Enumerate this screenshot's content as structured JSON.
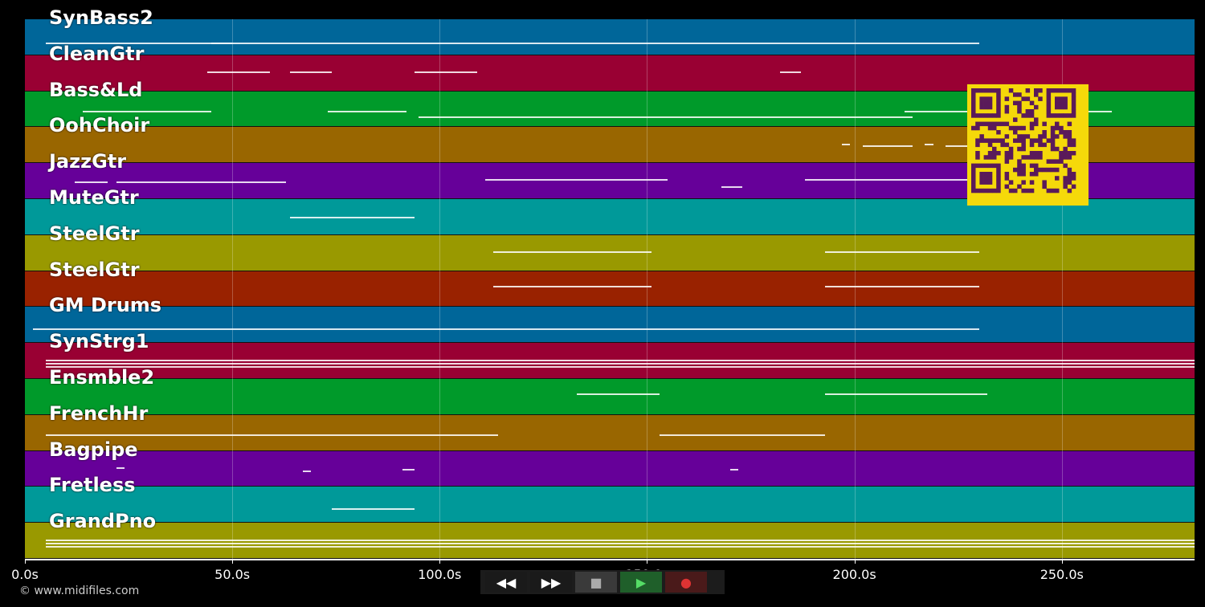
{
  "tracks": [
    {
      "name": "SynBass2",
      "color": "#006699"
    },
    {
      "name": "CleanGtr",
      "color": "#990033"
    },
    {
      "name": "Bass&Ld",
      "color": "#009a2a"
    },
    {
      "name": "OohChoir",
      "color": "#996600"
    },
    {
      "name": "JazzGtr",
      "color": "#660099"
    },
    {
      "name": "MuteGtr",
      "color": "#009999"
    },
    {
      "name": "SteelGtr",
      "color": "#999900"
    },
    {
      "name": "SteelGtr",
      "color": "#992200"
    },
    {
      "name": "GM Drums",
      "color": "#006699"
    },
    {
      "name": "SynStrg1",
      "color": "#990033"
    },
    {
      "name": "Ensmble2",
      "color": "#009a2a"
    },
    {
      "name": "FrenchHr",
      "color": "#996600"
    },
    {
      "name": "Bagpipe",
      "color": "#660099"
    },
    {
      "name": "Fretless",
      "color": "#009999"
    },
    {
      "name": "GrandPno",
      "color": "#999900"
    }
  ],
  "timeline": {
    "duration_s": 282,
    "ticks": [
      {
        "value": 0,
        "label": "0.0s"
      },
      {
        "value": 50,
        "label": "50.0s"
      },
      {
        "value": 100,
        "label": "100.0s"
      },
      {
        "value": 150,
        "label": "150.0s"
      },
      {
        "value": 200,
        "label": "200.0s"
      },
      {
        "value": 250,
        "label": "250.0s"
      }
    ]
  },
  "notes": [
    [
      [
        5,
        50
      ],
      [
        45,
        230
      ]
    ],
    [
      [
        44,
        59
      ],
      [
        64,
        74
      ],
      [
        94,
        109
      ],
      [
        182,
        187
      ]
    ],
    [
      [
        14,
        45
      ],
      [
        73,
        92
      ],
      [
        95,
        175
      ],
      [
        175,
        214
      ],
      [
        212,
        262
      ]
    ],
    [
      [
        197,
        199
      ],
      [
        202,
        214
      ],
      [
        217,
        219
      ],
      [
        222,
        234
      ]
    ],
    [
      [
        12,
        20
      ],
      [
        22,
        63
      ],
      [
        111,
        155
      ],
      [
        168,
        173
      ],
      [
        188,
        230
      ]
    ],
    [
      [
        64,
        94
      ]
    ],
    [
      [
        113,
        151
      ],
      [
        193,
        230
      ]
    ],
    [
      [
        113,
        151
      ],
      [
        193,
        230
      ]
    ],
    [
      [
        2,
        230
      ]
    ],
    [
      [
        5,
        282
      ]
    ],
    [
      [
        133,
        153
      ],
      [
        193,
        232
      ]
    ],
    [
      [
        5,
        114
      ],
      [
        153,
        193
      ]
    ],
    [
      [
        22,
        24
      ],
      [
        67,
        69
      ],
      [
        91,
        94
      ],
      [
        170,
        172
      ]
    ],
    [
      [
        74,
        94
      ]
    ],
    [
      [
        5,
        282
      ]
    ]
  ],
  "note_rows": [
    [
      0.65,
      0.65
    ],
    [
      0.45,
      0.45,
      0.45,
      0.45
    ],
    [
      0.55,
      0.55,
      0.7,
      0.7,
      0.55
    ],
    [
      0.45,
      0.5,
      0.45,
      0.5
    ],
    [
      0.5,
      0.5,
      0.45,
      0.65,
      0.45
    ],
    [
      0.5
    ],
    [
      0.45,
      0.45
    ],
    [
      0.4,
      0.4
    ],
    [
      0.6
    ],
    [
      0.55,
      0.55
    ],
    [
      0.4,
      0.4
    ],
    [
      0.55,
      0.55
    ],
    [
      0.45,
      0.55,
      0.5,
      0.5
    ],
    [
      0.6
    ],
    [
      0.55
    ]
  ],
  "copyright": "© www.midifiles.com",
  "controls": [
    {
      "name": "rewind-button",
      "label": "◀◀",
      "bg": "#1a1a1a",
      "color": "#ffffff"
    },
    {
      "name": "fast-forward-button",
      "label": "▶▶",
      "bg": "#1a1a1a",
      "color": "#ffffff"
    },
    {
      "name": "stop-button",
      "label": "■",
      "bg": "#3a3a3a",
      "color": "#aaaaaa"
    },
    {
      "name": "play-button",
      "label": "▶",
      "bg": "#1f5f2a",
      "color": "#55dd66"
    },
    {
      "name": "record-button",
      "label": "●",
      "bg": "#4a1a1a",
      "color": "#dd3333"
    }
  ],
  "qr": {
    "fg": "#5a1a5a",
    "bg": "#f5d90a"
  }
}
